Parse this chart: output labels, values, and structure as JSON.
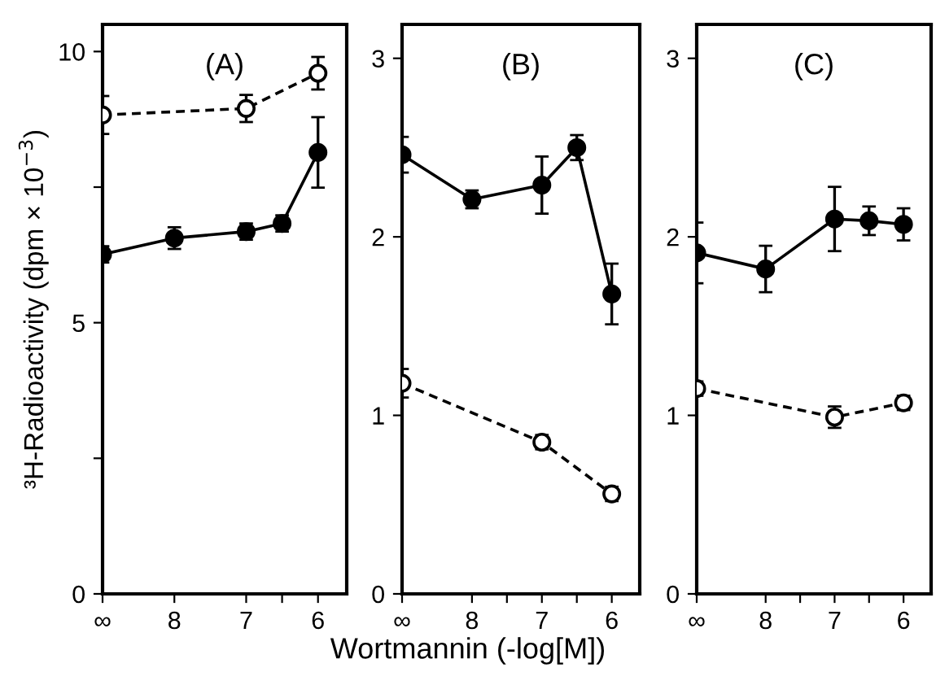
{
  "chart_data": [
    {
      "type": "line",
      "title": "(A)",
      "ylabel": "³H-Radioactivity (dpm × 10$^{−3}$)",
      "x": [
        9,
        8,
        7,
        6.5,
        6
      ],
      "xlim": [
        9,
        5.6
      ],
      "xticks": [
        {
          "value": 9,
          "label": "∞"
        },
        8,
        7,
        {
          "value": 6.5,
          "label": null
        },
        6
      ],
      "ylim": [
        0,
        10.5
      ],
      "yticks": [
        0,
        {
          "value": 2.5,
          "label": null
        },
        5,
        {
          "value": 7.5,
          "label": null
        },
        10
      ],
      "grid": false,
      "legend": false,
      "series": [
        {
          "color": "#000000",
          "marker": "circle",
          "line_style": "dashed",
          "x": [
            9,
            7,
            6
          ],
          "values": [
            8.83,
            8.95,
            9.6
          ],
          "errors": [
            0.35,
            0.25,
            0.3
          ]
        },
        {
          "color": "#000000",
          "marker": "circle",
          "line_style": "solid",
          "values": [
            6.26,
            6.56,
            6.68,
            6.83,
            8.14
          ],
          "errors": [
            0.15,
            0.2,
            0.15,
            0.15,
            0.65
          ]
        }
      ]
    },
    {
      "type": "line",
      "title": "(B)",
      "xlabel": "Wortmannin (-log[M])",
      "x": [
        9,
        8,
        7,
        6.5,
        6
      ],
      "xlim": [
        9,
        5.6
      ],
      "xticks": [
        {
          "value": 9,
          "label": "∞"
        },
        8,
        {
          "value": 7.5,
          "label": null
        },
        7,
        {
          "value": 6.5,
          "label": null
        },
        6
      ],
      "ylim": [
        0,
        3.19
      ],
      "yticks": [
        0,
        1,
        2,
        3
      ],
      "grid": false,
      "legend": false,
      "series": [
        {
          "color": "#000000",
          "marker": "circle",
          "line_style": "solid",
          "values": [
            2.46,
            2.21,
            2.29,
            2.5,
            1.68
          ],
          "errors": [
            0.1,
            0.05,
            0.16,
            0.07,
            0.17
          ]
        },
        {
          "color": "#000000",
          "marker": "circle",
          "line_style": "dashed",
          "x": [
            9,
            7,
            6
          ],
          "values": [
            1.18,
            0.85,
            0.56
          ],
          "errors": [
            0.08,
            0.04,
            0.04
          ]
        }
      ]
    },
    {
      "type": "line",
      "title": "(C)",
      "x": [
        9,
        8,
        7,
        6.5,
        6
      ],
      "xlim": [
        9,
        5.6
      ],
      "xticks": [
        {
          "value": 9,
          "label": "∞"
        },
        8,
        {
          "value": 7.5,
          "label": null
        },
        7,
        {
          "value": 6.5,
          "label": null
        },
        6
      ],
      "ylim": [
        0,
        3.19
      ],
      "yticks": [
        0,
        1,
        2,
        3
      ],
      "grid": false,
      "legend": false,
      "series": [
        {
          "color": "#000000",
          "marker": "circle",
          "line_style": "solid",
          "values": [
            1.91,
            1.82,
            2.1,
            2.09,
            2.07
          ],
          "errors": [
            0.17,
            0.13,
            0.18,
            0.08,
            0.09
          ]
        },
        {
          "color": "#000000",
          "marker": "circle",
          "line_style": "dashed",
          "x": [
            9,
            7,
            6
          ],
          "values": [
            1.15,
            0.99,
            1.07
          ],
          "errors": [
            0.04,
            0.06,
            0.04
          ]
        }
      ]
    }
  ]
}
